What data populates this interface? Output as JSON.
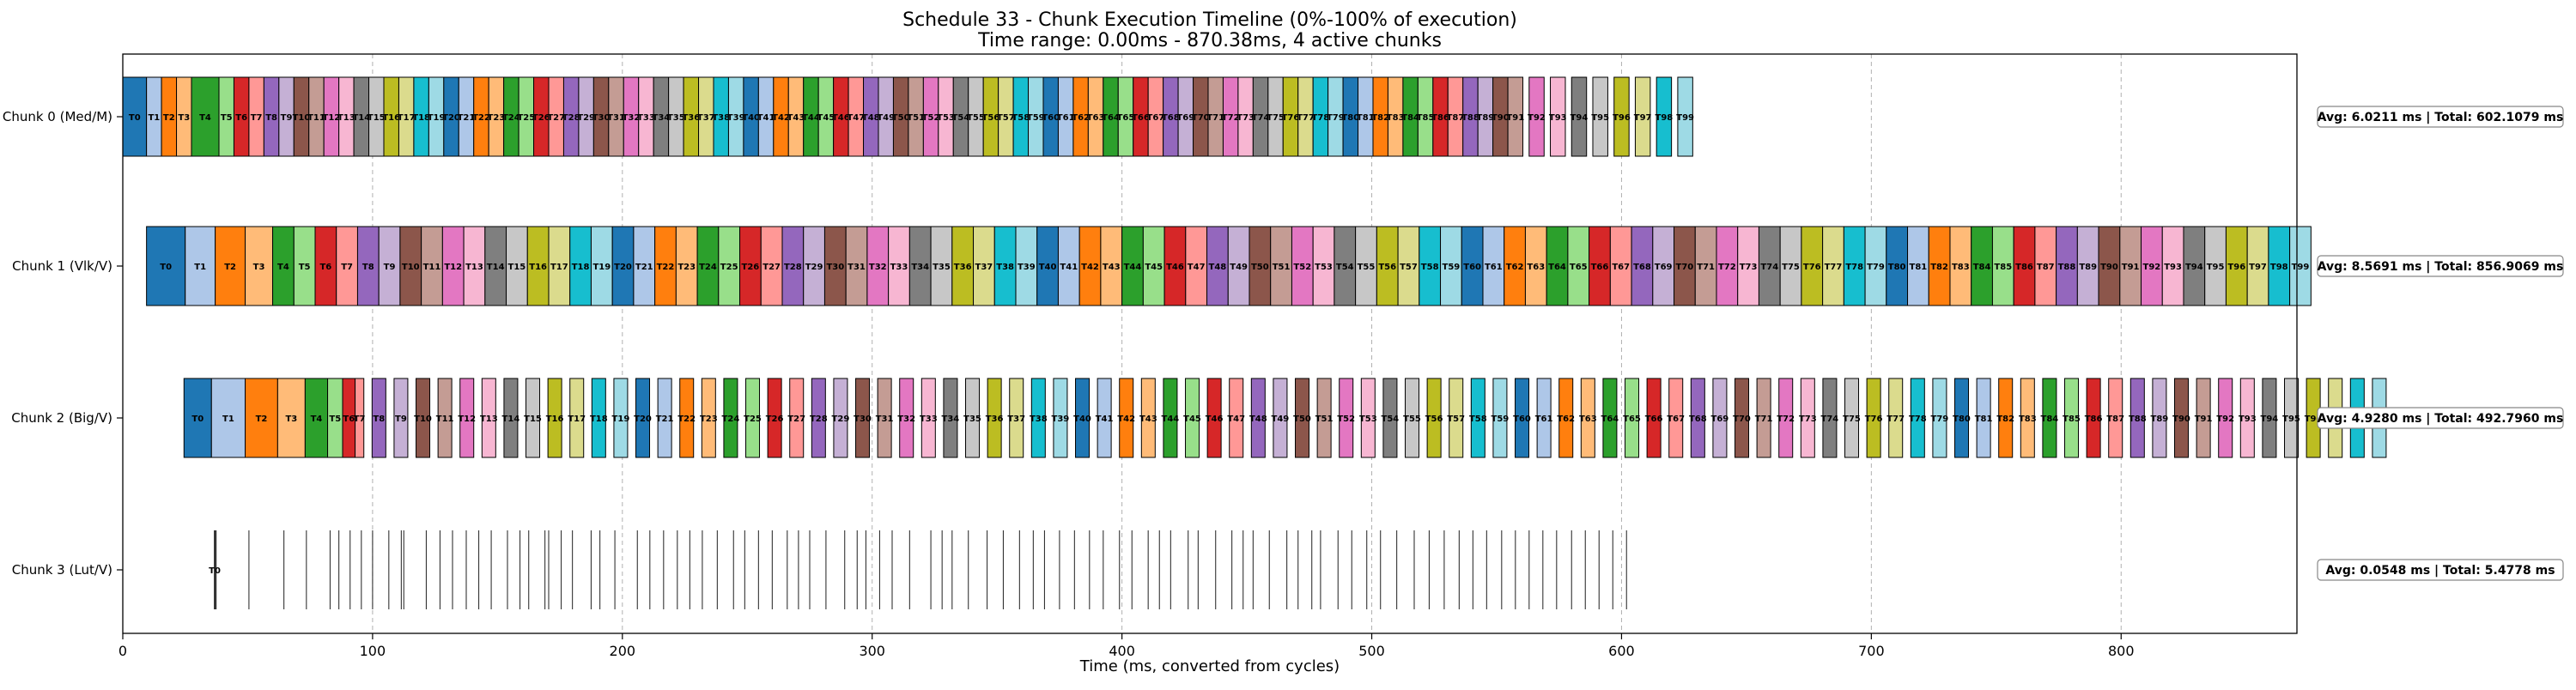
{
  "chart_data": {
    "type": "bar",
    "title": "Schedule 33 - Chunk Execution Timeline (0%-100% of execution)",
    "subtitle": "Time range: 0.00ms - 870.38ms, 4 active chunks",
    "xlabel": "Time (ms, converted from cycles)",
    "ylabel": "",
    "xlim": [
      0,
      870.38
    ],
    "xticks": [
      0,
      100,
      200,
      300,
      400,
      500,
      600,
      700,
      800
    ],
    "grid": "vertical dashed",
    "palette": [
      "#1f77b4",
      "#aec7e8",
      "#ff7f0e",
      "#ffbb78",
      "#2ca02c",
      "#98df8a",
      "#d62728",
      "#ff9896",
      "#9467bd",
      "#c5b0d5",
      "#8c564b",
      "#c49c94",
      "#e377c2",
      "#f7b6d2",
      "#7f7f7f",
      "#c7c7c7",
      "#bcbd22",
      "#dbdb8d",
      "#17becf",
      "#9edae5"
    ],
    "chunks": [
      {
        "label": "Chunk 0 (Med/M)",
        "stats": "Avg: 6.0211 ms | Total: 602.1079 ms",
        "start": 0,
        "durations": [
          9.5,
          6,
          6,
          6,
          11,
          6,
          6,
          6,
          6,
          6,
          6,
          6,
          6,
          6,
          6,
          6,
          6,
          6,
          6,
          6,
          6,
          6,
          6,
          6,
          6,
          6,
          6,
          6,
          6,
          6,
          6,
          6,
          6,
          6,
          6,
          6,
          6,
          6,
          6,
          6,
          6,
          6,
          6,
          6,
          6,
          6,
          6,
          6,
          6,
          6,
          6,
          6,
          6,
          6,
          6,
          6,
          6,
          6,
          6,
          6,
          6,
          6,
          6,
          6,
          6,
          6,
          6,
          6,
          6,
          6,
          6,
          6,
          6,
          6,
          6,
          6,
          6,
          6,
          6,
          6,
          6,
          6,
          6,
          6,
          6,
          6,
          6,
          6,
          6,
          6,
          6,
          6,
          6,
          6,
          6,
          6,
          6,
          6,
          6,
          6
        ],
        "gaps": [
          0,
          0,
          0,
          0,
          0,
          0,
          0,
          0,
          0,
          0,
          0,
          0,
          0,
          0,
          0,
          0,
          0,
          0,
          0,
          0,
          0,
          0,
          0,
          0,
          0,
          0,
          0,
          0,
          0,
          0,
          0,
          0,
          0,
          0,
          0,
          0,
          0,
          0,
          0,
          0,
          0,
          0,
          0,
          0,
          0,
          0,
          0,
          0,
          0,
          0,
          0,
          0,
          0,
          0,
          0,
          0,
          0,
          0,
          0,
          0,
          0,
          0,
          0,
          0,
          0,
          0,
          0,
          0,
          0,
          0,
          0,
          0,
          0,
          0,
          0,
          0,
          0,
          0,
          0,
          0,
          0,
          0,
          0,
          0,
          0,
          0,
          0,
          0,
          0,
          0,
          0,
          0,
          2.5,
          2.5,
          2.5,
          2.5,
          2.5,
          2.5,
          2.5,
          2.5
        ]
      },
      {
        "label": "Chunk 1 (Vlk/V)",
        "stats": "Avg: 8.5691 ms | Total: 856.9069 ms",
        "start": 9.5,
        "durations": [
          15.5,
          12,
          12,
          11,
          8.5,
          8.5,
          8.5,
          8.5,
          8.5,
          8.5,
          8.5,
          8.5,
          8.5,
          8.5,
          8.5,
          8.5,
          8.5,
          8.5,
          8.5,
          8.5,
          8.5,
          8.5,
          8.5,
          8.5,
          8.5,
          8.5,
          8.5,
          8.5,
          8.5,
          8.5,
          8.5,
          8.5,
          8.5,
          8.5,
          8.5,
          8.5,
          8.5,
          8.5,
          8.5,
          8.5,
          8.5,
          8.5,
          8.5,
          8.5,
          8.5,
          8.5,
          8.5,
          8.5,
          8.5,
          8.5,
          8.5,
          8.5,
          8.5,
          8.5,
          8.5,
          8.5,
          8.5,
          8.5,
          8.5,
          8.5,
          8.5,
          8.5,
          8.5,
          8.5,
          8.5,
          8.5,
          8.5,
          8.5,
          8.5,
          8.5,
          8.5,
          8.5,
          8.5,
          8.5,
          8.5,
          8.5,
          8.5,
          8.5,
          8.5,
          8.5,
          8.5,
          8.5,
          8.5,
          8.5,
          8.5,
          8.5,
          8.5,
          8.5,
          8.5,
          8.5,
          8.5,
          8.5,
          8.5,
          8.5,
          8.5,
          8.5,
          8.5,
          8.5,
          8.5,
          8.5
        ],
        "gaps": []
      },
      {
        "label": "Chunk 2 (Big/V)",
        "stats": "Avg: 4.9280 ms | Total: 492.7960 ms",
        "start": 24.5,
        "durations": [
          11,
          13.5,
          13,
          11,
          9,
          6,
          5,
          3.5,
          5.5,
          5.5,
          5.5,
          5.5,
          5.5,
          5.5,
          5.5,
          5.5,
          5.5,
          5.5,
          5.5,
          5.5,
          5.5,
          5.5,
          5.5,
          5.5,
          5.5,
          5.5,
          5.5,
          5.5,
          5.5,
          5.5,
          5.5,
          5.5,
          5.5,
          5.5,
          5.5,
          5.5,
          5.5,
          5.5,
          5.5,
          5.5,
          5.5,
          5.5,
          5.5,
          5.5,
          5.5,
          5.5,
          5.5,
          5.5,
          5.5,
          5.5,
          5.5,
          5.5,
          5.5,
          5.5,
          5.5,
          5.5,
          5.5,
          5.5,
          5.5,
          5.5,
          5.5,
          5.5,
          5.5,
          5.5,
          5.5,
          5.5,
          5.5,
          5.5,
          5.5,
          5.5,
          5.5,
          5.5,
          5.5,
          5.5,
          5.5,
          5.5,
          5.5,
          5.5,
          5.5,
          5.5,
          5.5,
          5.5,
          5.5,
          5.5,
          5.5,
          5.5,
          5.5,
          5.5,
          5.5,
          5.5,
          5.5,
          5.5,
          5.5,
          5.5,
          5.5,
          5.5,
          5.5,
          5.5,
          5.5,
          5.5
        ],
        "gaps": [
          0,
          0,
          0,
          0,
          0,
          0,
          0,
          0,
          3.3,
          3.3,
          3.3,
          3.3,
          3.3,
          3.3,
          3.3,
          3.3,
          3.3,
          3.3,
          3.3,
          3.3,
          3.3,
          3.3,
          3.3,
          3.3,
          3.3,
          3.3,
          3.3,
          3.3,
          3.3,
          3.3,
          3.3,
          3.3,
          3.3,
          3.3,
          3.3,
          3.3,
          3.3,
          3.3,
          3.3,
          3.3,
          3.3,
          3.3,
          3.3,
          3.3,
          3.3,
          3.3,
          3.3,
          3.3,
          3.3,
          3.3,
          3.3,
          3.3,
          3.3,
          3.3,
          3.3,
          3.3,
          3.3,
          3.3,
          3.3,
          3.3,
          3.3,
          3.3,
          3.3,
          3.3,
          3.3,
          3.3,
          3.3,
          3.3,
          3.3,
          3.3,
          3.3,
          3.3,
          3.3,
          3.3,
          3.3,
          3.3,
          3.3,
          3.3,
          3.3,
          3.3,
          3.3,
          3.3,
          3.3,
          3.3,
          3.3,
          3.3,
          3.3,
          3.3,
          3.3,
          3.3,
          3.3,
          3.3,
          3.3,
          3.3,
          3.3,
          3.3,
          3.3,
          3.3,
          3.3,
          3.3
        ]
      },
      {
        "label": "Chunk 3 (Lut/V)",
        "stats": "Avg: 0.0548 ms | Total: 5.4778 ms",
        "start": 36.8,
        "markers": [
          36.8,
          37.2,
          50.5,
          64.5,
          73.5,
          83,
          86.5,
          91,
          95.5,
          100,
          106.5,
          111.5,
          112.5,
          121.5,
          127,
          132,
          137.5,
          142.5,
          147.5,
          154,
          159,
          162.5,
          169,
          170.5,
          175.5,
          180,
          187.5,
          191,
          197,
          206,
          211,
          216.5,
          222,
          227,
          232,
          238,
          244.5,
          249,
          254.5,
          260,
          266,
          270.5,
          275,
          281.5,
          289,
          294,
          297.5,
          303,
          308,
          315,
          323.5,
          328,
          332,
          338.5,
          346,
          352.5,
          359,
          364.5,
          369,
          375,
          381,
          387,
          392.5,
          399,
          404,
          410.5,
          415,
          419.5,
          426.5,
          430.5,
          437.5,
          444,
          448.5,
          452.5,
          459,
          466,
          470.5,
          476,
          479.5,
          486.5,
          492,
          498,
          503.5,
          510,
          517,
          523,
          529,
          535,
          540.5,
          546,
          552,
          557.5,
          563,
          568.5,
          574,
          580,
          585.5,
          591,
          596.5,
          602
        ],
        "first_label": "T0"
      }
    ]
  }
}
